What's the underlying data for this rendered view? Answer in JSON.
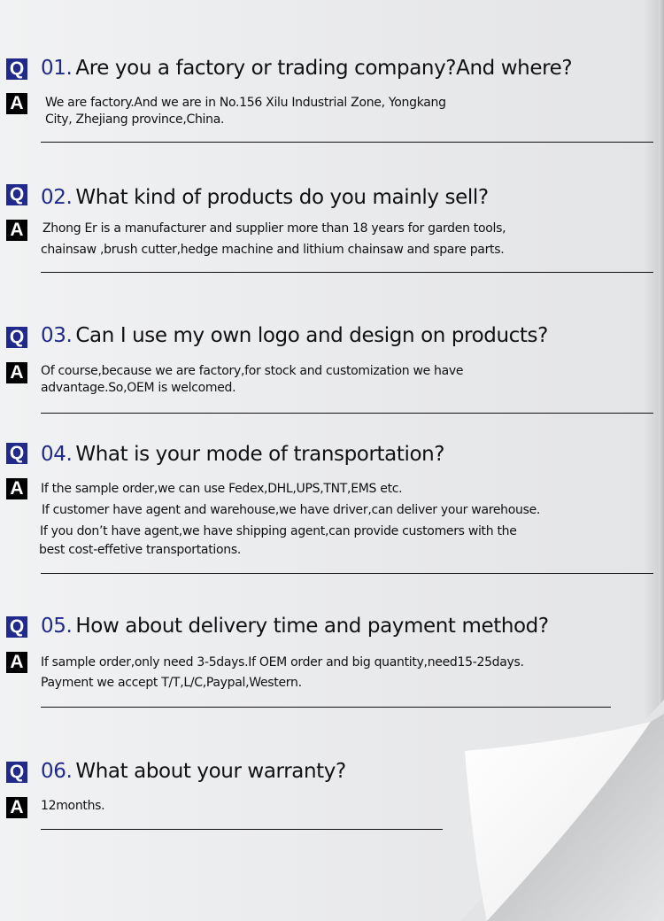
{
  "faq": [
    {
      "badge_q": "Q",
      "badge_a": "A",
      "number": "01.",
      "question": "Are you a factory or trading company?And where?",
      "answer": [
        "We are factory.And we are in No.156 Xilu Industrial Zone, Yongkang",
        "City, Zhejiang province,China."
      ]
    },
    {
      "badge_q": "Q",
      "badge_a": "A",
      "number": "02.",
      "question": "What kind of products do you mainly sell?",
      "answer": [
        "Zhong Er is a manufacturer and supplier more than 18 years for garden tools,",
        "chainsaw ,brush cutter,hedge machine and lithium chainsaw and spare parts."
      ]
    },
    {
      "badge_q": "Q",
      "badge_a": "A",
      "number": "03.",
      "question": "Can I use my own logo and design on products?",
      "answer": [
        "Of course,because we are factory,for stock and customization we have",
        "advantage.So,OEM is welcomed."
      ]
    },
    {
      "badge_q": "Q",
      "badge_a": "A",
      "number": "04.",
      "question": "What is your mode of transportation?",
      "answer": [
        "If the sample order,we can use Fedex,DHL,UPS,TNT,EMS etc.",
        "If customer have agent and warehouse,we have driver,can deliver your warehouse.",
        "If you don’t have agent,we have shipping agent,can provide customers with the",
        "best cost-effetive transportations."
      ]
    },
    {
      "badge_q": "Q",
      "badge_a": "A",
      "number": "05.",
      "question": "How about delivery time and payment method?",
      "answer": [
        "If sample order,only need 3-5days.If OEM order and big quantity,need15-25days.",
        "Payment we accept T/T,L/C,Paypal,Western."
      ]
    },
    {
      "badge_q": "Q",
      "badge_a": "A",
      "number": "06.",
      "question": "What about your warranty?",
      "answer": [
        "12months."
      ]
    }
  ],
  "colors": {
    "q_badge": "#1f2a8c",
    "a_badge": "#000000",
    "number": "#1f2a8c"
  }
}
